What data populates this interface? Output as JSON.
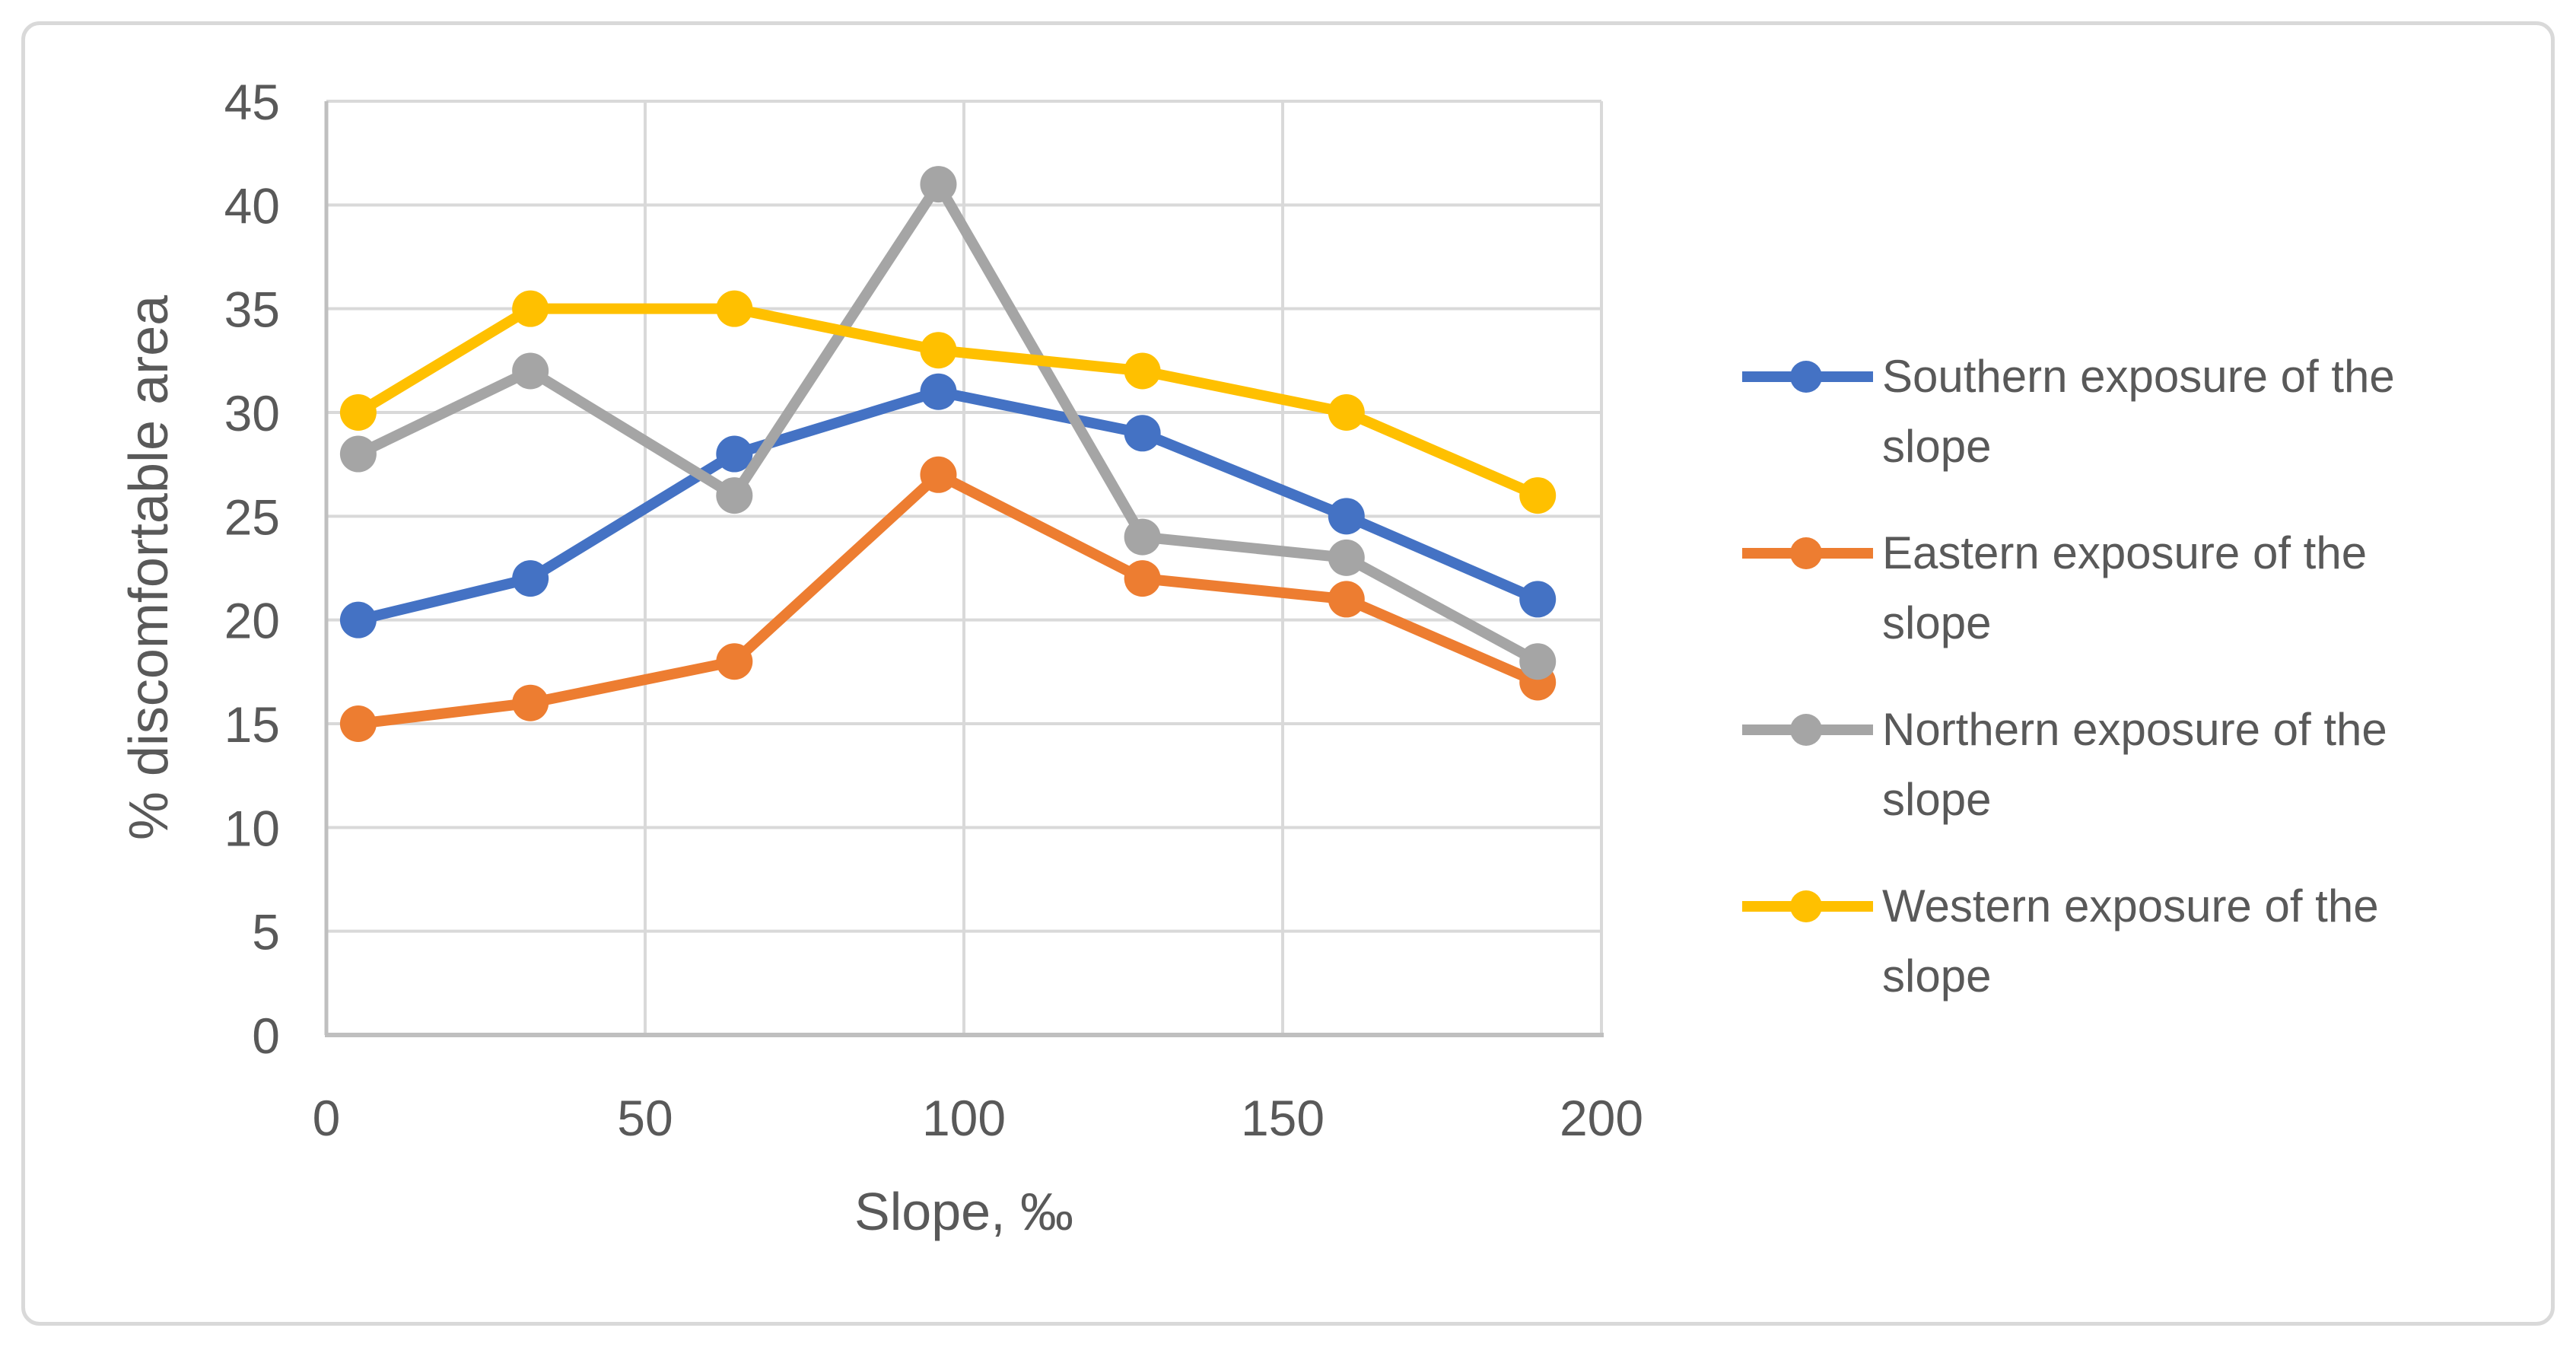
{
  "chart_data": {
    "type": "line",
    "title": "",
    "xlabel": "Slope, ‰",
    "ylabel": "% discomfortable area",
    "x": [
      5,
      32,
      64,
      96,
      128,
      160,
      190
    ],
    "series": [
      {
        "name": "Southern exposure of the slope",
        "name_lines": [
          "Southern exposure of the",
          "slope"
        ],
        "color": "#4472C4",
        "values": [
          20,
          22,
          28,
          31,
          29,
          25,
          21
        ]
      },
      {
        "name": "Eastern exposure of the slope",
        "name_lines": [
          "Eastern exposure of the",
          "slope"
        ],
        "color": "#ED7D31",
        "values": [
          15,
          16,
          18,
          27,
          22,
          21,
          17
        ]
      },
      {
        "name": "Northern exposure of the slope",
        "name_lines": [
          "Northern exposure of the",
          "slope"
        ],
        "color": "#A5A5A5",
        "values": [
          28,
          32,
          26,
          41,
          24,
          23,
          18
        ]
      },
      {
        "name": "Western exposure of the slope",
        "name_lines": [
          "Western exposure of the",
          "slope"
        ],
        "color": "#FFC000",
        "values": [
          30,
          35,
          35,
          33,
          32,
          30,
          26
        ]
      }
    ],
    "xlim": [
      0,
      200
    ],
    "ylim": [
      0,
      45
    ],
    "x_ticks": [
      0,
      50,
      100,
      150,
      200
    ],
    "y_ticks": [
      0,
      5,
      10,
      15,
      20,
      25,
      30,
      35,
      40,
      45
    ],
    "grid": true,
    "legend_position": "right"
  },
  "colors": {
    "gridline": "#D9D9D9",
    "axis": "#BFBFBF",
    "text": "#595959",
    "border": "#D9D9D9"
  }
}
